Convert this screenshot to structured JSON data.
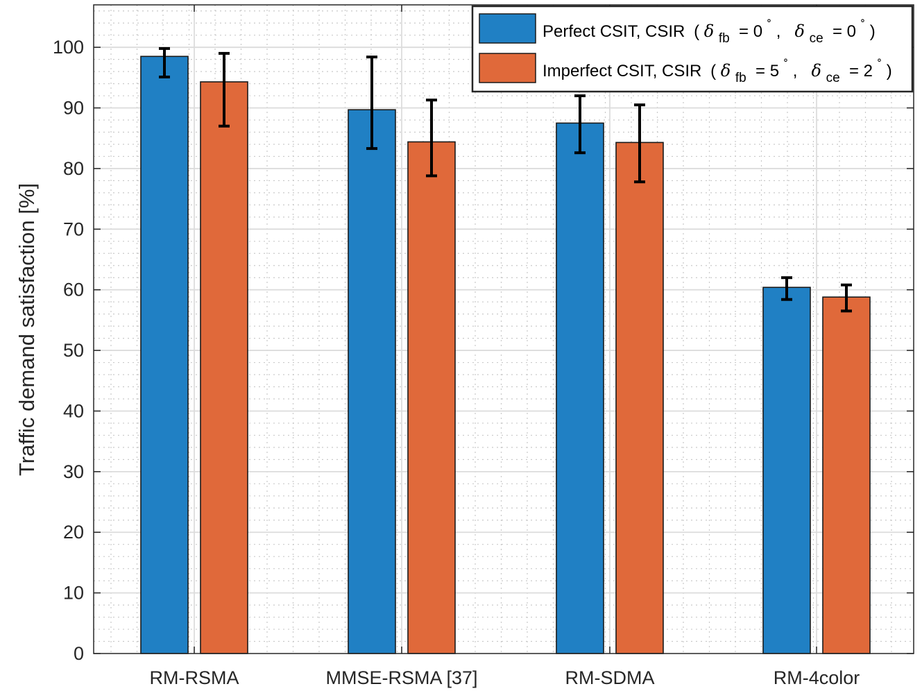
{
  "chart_data": {
    "type": "bar",
    "title": "",
    "xlabel": "",
    "ylabel": "Traffic demand satisfaction [%]",
    "ylim": [
      0,
      107
    ],
    "yticks": [
      0,
      10,
      20,
      30,
      40,
      50,
      60,
      70,
      80,
      90,
      100
    ],
    "grid": true,
    "legend_position": "top-right",
    "categories": [
      "RM-RSMA",
      "MMSE-RSMA [37]",
      "RM-SDMA",
      "RM-4color"
    ],
    "series": [
      {
        "name": "Perfect CSIT, CSIR",
        "legend_params": {
          "paren_open": "(",
          "sym1": "δ",
          "sub1": "fb",
          "mid1": " = 0",
          "sep": ",  ",
          "sym2": "δ",
          "sub2": "ce",
          "mid2": " = 0",
          "deg": "˚",
          "paren_close": ")"
        },
        "color": "#2080c4",
        "values": [
          98.5,
          89.7,
          87.5,
          60.4
        ],
        "err_low": [
          95.1,
          83.3,
          82.6,
          58.4
        ],
        "err_high": [
          99.8,
          98.4,
          92.0,
          62.0
        ]
      },
      {
        "name": "Imperfect CSIT, CSIR",
        "legend_params": {
          "paren_open": "(",
          "sym1": "δ",
          "sub1": "fb",
          "mid1": " = 5",
          "sep": ",  ",
          "sym2": "δ",
          "sub2": "ce",
          "mid2": " = 2",
          "deg": "˚",
          "paren_close": ")"
        },
        "color": "#e0693a",
        "values": [
          94.3,
          84.4,
          84.3,
          58.8
        ],
        "err_low": [
          87.0,
          78.8,
          77.8,
          56.5
        ],
        "err_high": [
          99.0,
          91.3,
          90.5,
          60.8
        ]
      }
    ]
  }
}
